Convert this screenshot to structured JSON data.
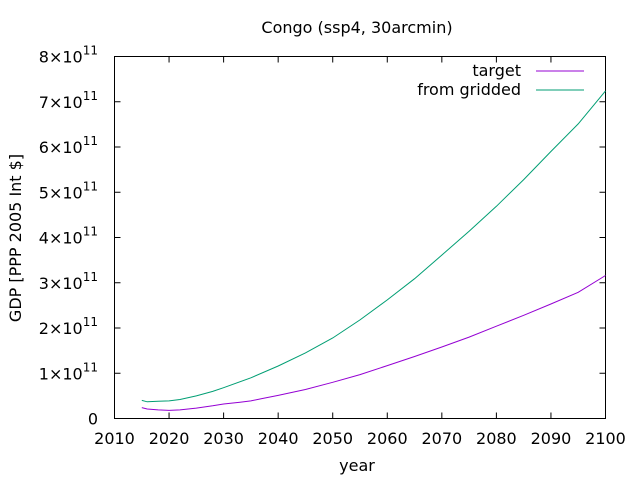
{
  "chart_data": {
    "type": "line",
    "title": "Congo (ssp4, 30arcmin)",
    "xlabel": "year",
    "ylabel": "GDP [PPP 2005 Int $]",
    "xlim": [
      2010,
      2100
    ],
    "ylim": [
      0,
      800000000000
    ],
    "legend_position": "top-right",
    "grid": false,
    "x_ticks": [
      {
        "value": 2010,
        "label": "2010"
      },
      {
        "value": 2020,
        "label": "2020"
      },
      {
        "value": 2030,
        "label": "2030"
      },
      {
        "value": 2040,
        "label": "2040"
      },
      {
        "value": 2050,
        "label": "2050"
      },
      {
        "value": 2060,
        "label": "2060"
      },
      {
        "value": 2070,
        "label": "2070"
      },
      {
        "value": 2080,
        "label": "2080"
      },
      {
        "value": 2090,
        "label": "2090"
      },
      {
        "value": 2100,
        "label": "2100"
      }
    ],
    "y_ticks": [
      {
        "value": 0,
        "mantissa": "0",
        "exponent": ""
      },
      {
        "value": 100000000000,
        "mantissa": "1×10",
        "exponent": "11"
      },
      {
        "value": 200000000000,
        "mantissa": "2×10",
        "exponent": "11"
      },
      {
        "value": 300000000000,
        "mantissa": "3×10",
        "exponent": "11"
      },
      {
        "value": 400000000000,
        "mantissa": "4×10",
        "exponent": "11"
      },
      {
        "value": 500000000000,
        "mantissa": "5×10",
        "exponent": "11"
      },
      {
        "value": 600000000000,
        "mantissa": "6×10",
        "exponent": "11"
      },
      {
        "value": 700000000000,
        "mantissa": "7×10",
        "exponent": "11"
      },
      {
        "value": 800000000000,
        "mantissa": "8×10",
        "exponent": "11"
      }
    ],
    "series": [
      {
        "name": "target",
        "color": "#9400d3",
        "x": [
          2015,
          2016,
          2018,
          2020,
          2022,
          2025,
          2028,
          2030,
          2033,
          2035,
          2037,
          2040,
          2045,
          2050,
          2055,
          2060,
          2065,
          2070,
          2075,
          2080,
          2085,
          2090,
          2095,
          2100
        ],
        "y": [
          24000000000,
          21000000000,
          19000000000,
          18000000000,
          19000000000,
          23000000000,
          28000000000,
          32000000000,
          36000000000,
          39000000000,
          44000000000,
          51000000000,
          64000000000,
          80000000000,
          97000000000,
          117000000000,
          137000000000,
          158000000000,
          180000000000,
          204000000000,
          228000000000,
          253000000000,
          279000000000,
          316000000000
        ]
      },
      {
        "name": "from gridded",
        "color": "#009e73",
        "x": [
          2015,
          2016,
          2018,
          2020,
          2022,
          2025,
          2028,
          2030,
          2035,
          2040,
          2045,
          2050,
          2055,
          2060,
          2065,
          2070,
          2075,
          2080,
          2085,
          2090,
          2095,
          2100
        ],
        "y": [
          40000000000,
          37000000000,
          38000000000,
          39000000000,
          42000000000,
          50000000000,
          60000000000,
          68000000000,
          90000000000,
          116000000000,
          145000000000,
          178000000000,
          218000000000,
          262000000000,
          309000000000,
          361000000000,
          414000000000,
          469000000000,
          528000000000,
          590000000000,
          651000000000,
          724000000000
        ]
      }
    ]
  }
}
